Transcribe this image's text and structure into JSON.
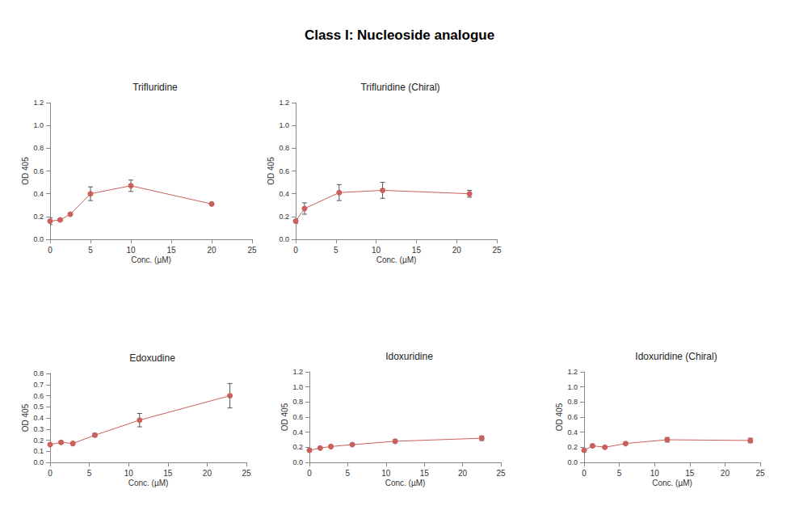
{
  "title": "Class I: Nucleoside analogue",
  "chart_data": [
    {
      "type": "line",
      "title": "Trifluridine",
      "xlabel": "Conc. (µM)",
      "ylabel": "OD 405",
      "x": [
        0,
        1.25,
        2.5,
        5,
        10,
        20
      ],
      "values": [
        0.16,
        0.17,
        0.22,
        0.4,
        0.47,
        0.31
      ],
      "errors": [
        0.03,
        0.01,
        0.01,
        0.06,
        0.05,
        0.01
      ],
      "color": "#c9605b",
      "marker": "circle",
      "grid": false,
      "xlim": [
        0,
        25
      ],
      "xticks": [
        0,
        5,
        10,
        15,
        20,
        25
      ],
      "ylim": [
        0,
        1.2
      ],
      "yticks": [
        {
          "value": 0,
          "label": "0.0"
        },
        0.2,
        0.4,
        0.6,
        0.8,
        {
          "value": 1,
          "label": "1.0"
        },
        1.2
      ]
    },
    {
      "type": "line",
      "title": "Trifluridine (Chiral)",
      "xlabel": "Conc. (µM)",
      "ylabel": "OD 405",
      "x": [
        0,
        1.1,
        5.4,
        10.8,
        21.6
      ],
      "values": [
        0.16,
        0.27,
        0.41,
        0.43,
        0.4
      ],
      "errors": [
        0.02,
        0.05,
        0.07,
        0.07,
        0.03
      ],
      "color": "#c9605b",
      "marker": "circle",
      "grid": false,
      "xlim": [
        0,
        25
      ],
      "xticks": [
        0,
        5,
        10,
        15,
        20,
        25
      ],
      "ylim": [
        0,
        1.2
      ],
      "yticks": [
        {
          "value": 0,
          "label": "0.0"
        },
        0.2,
        0.4,
        0.6,
        0.8,
        {
          "value": 1,
          "label": "1.0"
        },
        1.2
      ]
    },
    {
      "type": "line",
      "title": "Edoxudine",
      "xlabel": "Conc. (µM)",
      "ylabel": "OD 405",
      "x": [
        0,
        1.4,
        2.9,
        5.7,
        11.4,
        22.9
      ],
      "values": [
        0.16,
        0.18,
        0.17,
        0.245,
        0.38,
        0.6
      ],
      "errors": [
        0.01,
        0.01,
        0.01,
        0.015,
        0.06,
        0.11
      ],
      "color": "#c9605b",
      "marker": "circle",
      "grid": false,
      "xlim": [
        0,
        25
      ],
      "xticks": [
        0,
        5,
        10,
        15,
        20,
        25
      ],
      "ylim": [
        0,
        0.8
      ],
      "yticks": [
        {
          "value": 0,
          "label": "0.0"
        },
        0.1,
        0.2,
        0.3,
        0.4,
        0.5,
        0.6,
        0.7,
        0.8
      ]
    },
    {
      "type": "line",
      "title": "Idoxuridine",
      "xlabel": "Conc. (µM)",
      "ylabel": "OD 405",
      "x": [
        0,
        1.4,
        2.8,
        5.6,
        11.2,
        22.5
      ],
      "values": [
        0.16,
        0.19,
        0.21,
        0.235,
        0.28,
        0.32
      ],
      "errors": [
        0.02,
        0.01,
        0.01,
        0.01,
        0.02,
        0.03
      ],
      "color": "#c9605b",
      "marker": "circle",
      "grid": false,
      "xlim": [
        0,
        25
      ],
      "xticks": [
        0,
        5,
        10,
        15,
        20,
        25
      ],
      "ylim": [
        0,
        1.2
      ],
      "yticks": [
        {
          "value": 0,
          "label": "0.0"
        },
        0.2,
        0.4,
        0.6,
        0.8,
        {
          "value": 1,
          "label": "1.0"
        },
        1.2
      ]
    },
    {
      "type": "line",
      "title": "Idoxuridine (Chiral)",
      "xlabel": "Conc. (µM)",
      "ylabel": "OD 405",
      "x": [
        0,
        1.2,
        2.95,
        5.9,
        11.8,
        23.6
      ],
      "values": [
        0.16,
        0.22,
        0.2,
        0.25,
        0.3,
        0.29
      ],
      "errors": [
        0.02,
        0.02,
        0.01,
        0.015,
        0.03,
        0.03
      ],
      "color": "#c9605b",
      "marker": "circle",
      "grid": false,
      "xlim": [
        0,
        25
      ],
      "xticks": [
        0,
        5,
        10,
        15,
        20,
        25
      ],
      "ylim": [
        0,
        1.2
      ],
      "yticks": [
        {
          "value": 0,
          "label": "0.0"
        },
        0.2,
        0.4,
        0.6,
        0.8,
        {
          "value": 1,
          "label": "1.0"
        },
        1.2
      ]
    }
  ]
}
